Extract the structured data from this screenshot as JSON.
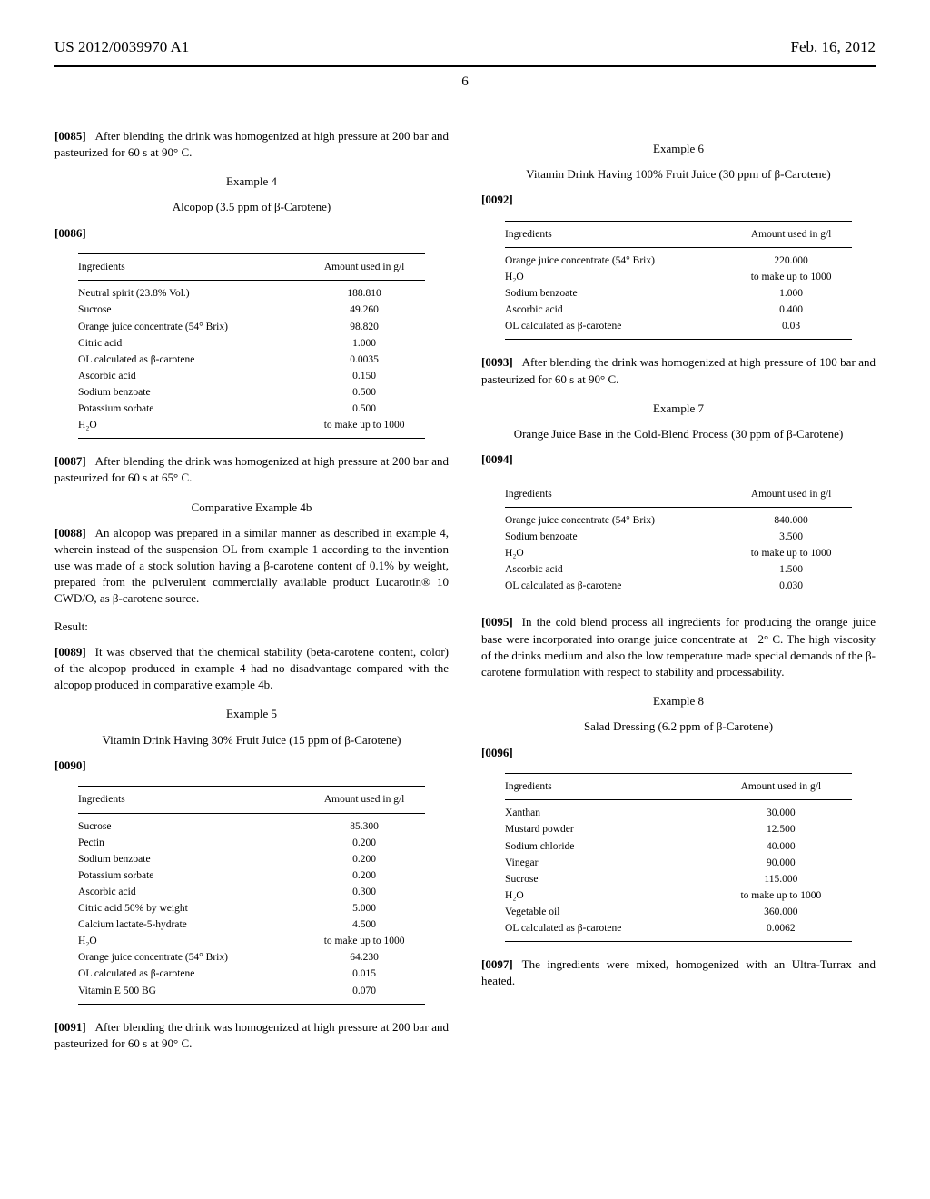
{
  "header": {
    "left": "US 2012/0039970 A1",
    "right": "Feb. 16, 2012"
  },
  "page_number": "6",
  "left_column": {
    "p0085": {
      "num": "[0085]",
      "text": "After blending the drink was homogenized at high pressure at 200 bar and pasteurized for 60 s at 90° C."
    },
    "ex4": {
      "title": "Example 4",
      "sub": "Alcopop (3.5 ppm of β-Carotene)",
      "num": "[0086]",
      "cols": [
        "Ingredients",
        "Amount used in g/l"
      ],
      "rows": [
        [
          "Neutral spirit (23.8% Vol.)",
          "188.810"
        ],
        [
          "Sucrose",
          "49.260"
        ],
        [
          "Orange juice concentrate (54° Brix)",
          "98.820"
        ],
        [
          "Citric acid",
          "1.000"
        ],
        [
          "OL calculated as β-carotene",
          "0.0035"
        ],
        [
          "Ascorbic acid",
          "0.150"
        ],
        [
          "Sodium benzoate",
          "0.500"
        ],
        [
          "Potassium sorbate",
          "0.500"
        ],
        [
          "H₂O",
          "to make up to 1000"
        ]
      ]
    },
    "p0087": {
      "num": "[0087]",
      "text": "After blending the drink was homogenized at high pressure at 200 bar and pasteurized for 60 s at 65° C."
    },
    "comp4b": {
      "title": "Comparative Example 4b"
    },
    "p0088": {
      "num": "[0088]",
      "text": "An alcopop was prepared in a similar manner as described in example 4, wherein instead of the suspension OL from example 1 according to the invention use was made of a stock solution having a β-carotene content of 0.1% by weight, prepared from the pulverulent commercially available product Lucarotin® 10 CWD/O, as β-carotene source."
    },
    "result_label": "Result:",
    "p0089": {
      "num": "[0089]",
      "text": "It was observed that the chemical stability (beta-carotene content, color) of the alcopop produced in example 4 had no disadvantage compared with the alcopop produced in comparative example 4b."
    },
    "ex5": {
      "title": "Example 5",
      "sub": "Vitamin Drink Having 30% Fruit Juice (15 ppm of β-Carotene)",
      "num": "[0090]",
      "cols": [
        "Ingredients",
        "Amount used in g/l"
      ],
      "rows": [
        [
          "Sucrose",
          "85.300"
        ],
        [
          "Pectin",
          "0.200"
        ],
        [
          "Sodium benzoate",
          "0.200"
        ],
        [
          "Potassium sorbate",
          "0.200"
        ],
        [
          "Ascorbic acid",
          "0.300"
        ],
        [
          "Citric acid 50% by weight",
          "5.000"
        ],
        [
          "Calcium lactate-5-hydrate",
          "4.500"
        ],
        [
          "H₂O",
          "to make up to 1000"
        ],
        [
          "Orange juice concentrate (54° Brix)",
          "64.230"
        ],
        [
          "OL calculated as β-carotene",
          "0.015"
        ],
        [
          "Vitamin E 500 BG",
          "0.070"
        ]
      ]
    },
    "p0091": {
      "num": "[0091]",
      "text": "After blending the drink was homogenized at high pressure at 200 bar and pasteurized for 60 s at 90° C."
    }
  },
  "right_column": {
    "ex6": {
      "title": "Example 6",
      "sub": "Vitamin Drink Having 100% Fruit Juice (30 ppm of β-Carotene)",
      "num": "[0092]",
      "cols": [
        "Ingredients",
        "Amount used in g/l"
      ],
      "rows": [
        [
          "Orange juice concentrate (54° Brix)",
          "220.000"
        ],
        [
          "H₂O",
          "to make up to 1000"
        ],
        [
          "Sodium benzoate",
          "1.000"
        ],
        [
          "Ascorbic acid",
          "0.400"
        ],
        [
          "OL calculated as β-carotene",
          "0.03"
        ]
      ]
    },
    "p0093": {
      "num": "[0093]",
      "text": "After blending the drink was homogenized at high pressure of 100 bar and pasteurized for 60 s at 90° C."
    },
    "ex7": {
      "title": "Example 7",
      "sub": "Orange Juice Base in the Cold-Blend Process (30 ppm of β-Carotene)",
      "num": "[0094]",
      "cols": [
        "Ingredients",
        "Amount used in g/l"
      ],
      "rows": [
        [
          "Orange juice concentrate (54° Brix)",
          "840.000"
        ],
        [
          "Sodium benzoate",
          "3.500"
        ],
        [
          "H₂O",
          "to make up to 1000"
        ],
        [
          "Ascorbic acid",
          "1.500"
        ],
        [
          "OL calculated as β-carotene",
          "0.030"
        ]
      ]
    },
    "p0095": {
      "num": "[0095]",
      "text": "In the cold blend process all ingredients for producing the orange juice base were incorporated into orange juice concentrate at −2° C. The high viscosity of the drinks medium and also the low temperature made special demands of the β-carotene formulation with respect to stability and processability."
    },
    "ex8": {
      "title": "Example 8",
      "sub": "Salad Dressing (6.2 ppm of β-Carotene)",
      "num": "[0096]",
      "cols": [
        "Ingredients",
        "Amount used in g/l"
      ],
      "rows": [
        [
          "Xanthan",
          "30.000"
        ],
        [
          "Mustard powder",
          "12.500"
        ],
        [
          "Sodium chloride",
          "40.000"
        ],
        [
          "Vinegar",
          "90.000"
        ],
        [
          "Sucrose",
          "115.000"
        ],
        [
          "H₂O",
          "to make up to 1000"
        ],
        [
          "Vegetable oil",
          "360.000"
        ],
        [
          "OL calculated as β-carotene",
          "0.0062"
        ]
      ]
    },
    "p0097": {
      "num": "[0097]",
      "text": "The ingredients were mixed, homogenized with an Ultra-Turrax and heated."
    }
  }
}
